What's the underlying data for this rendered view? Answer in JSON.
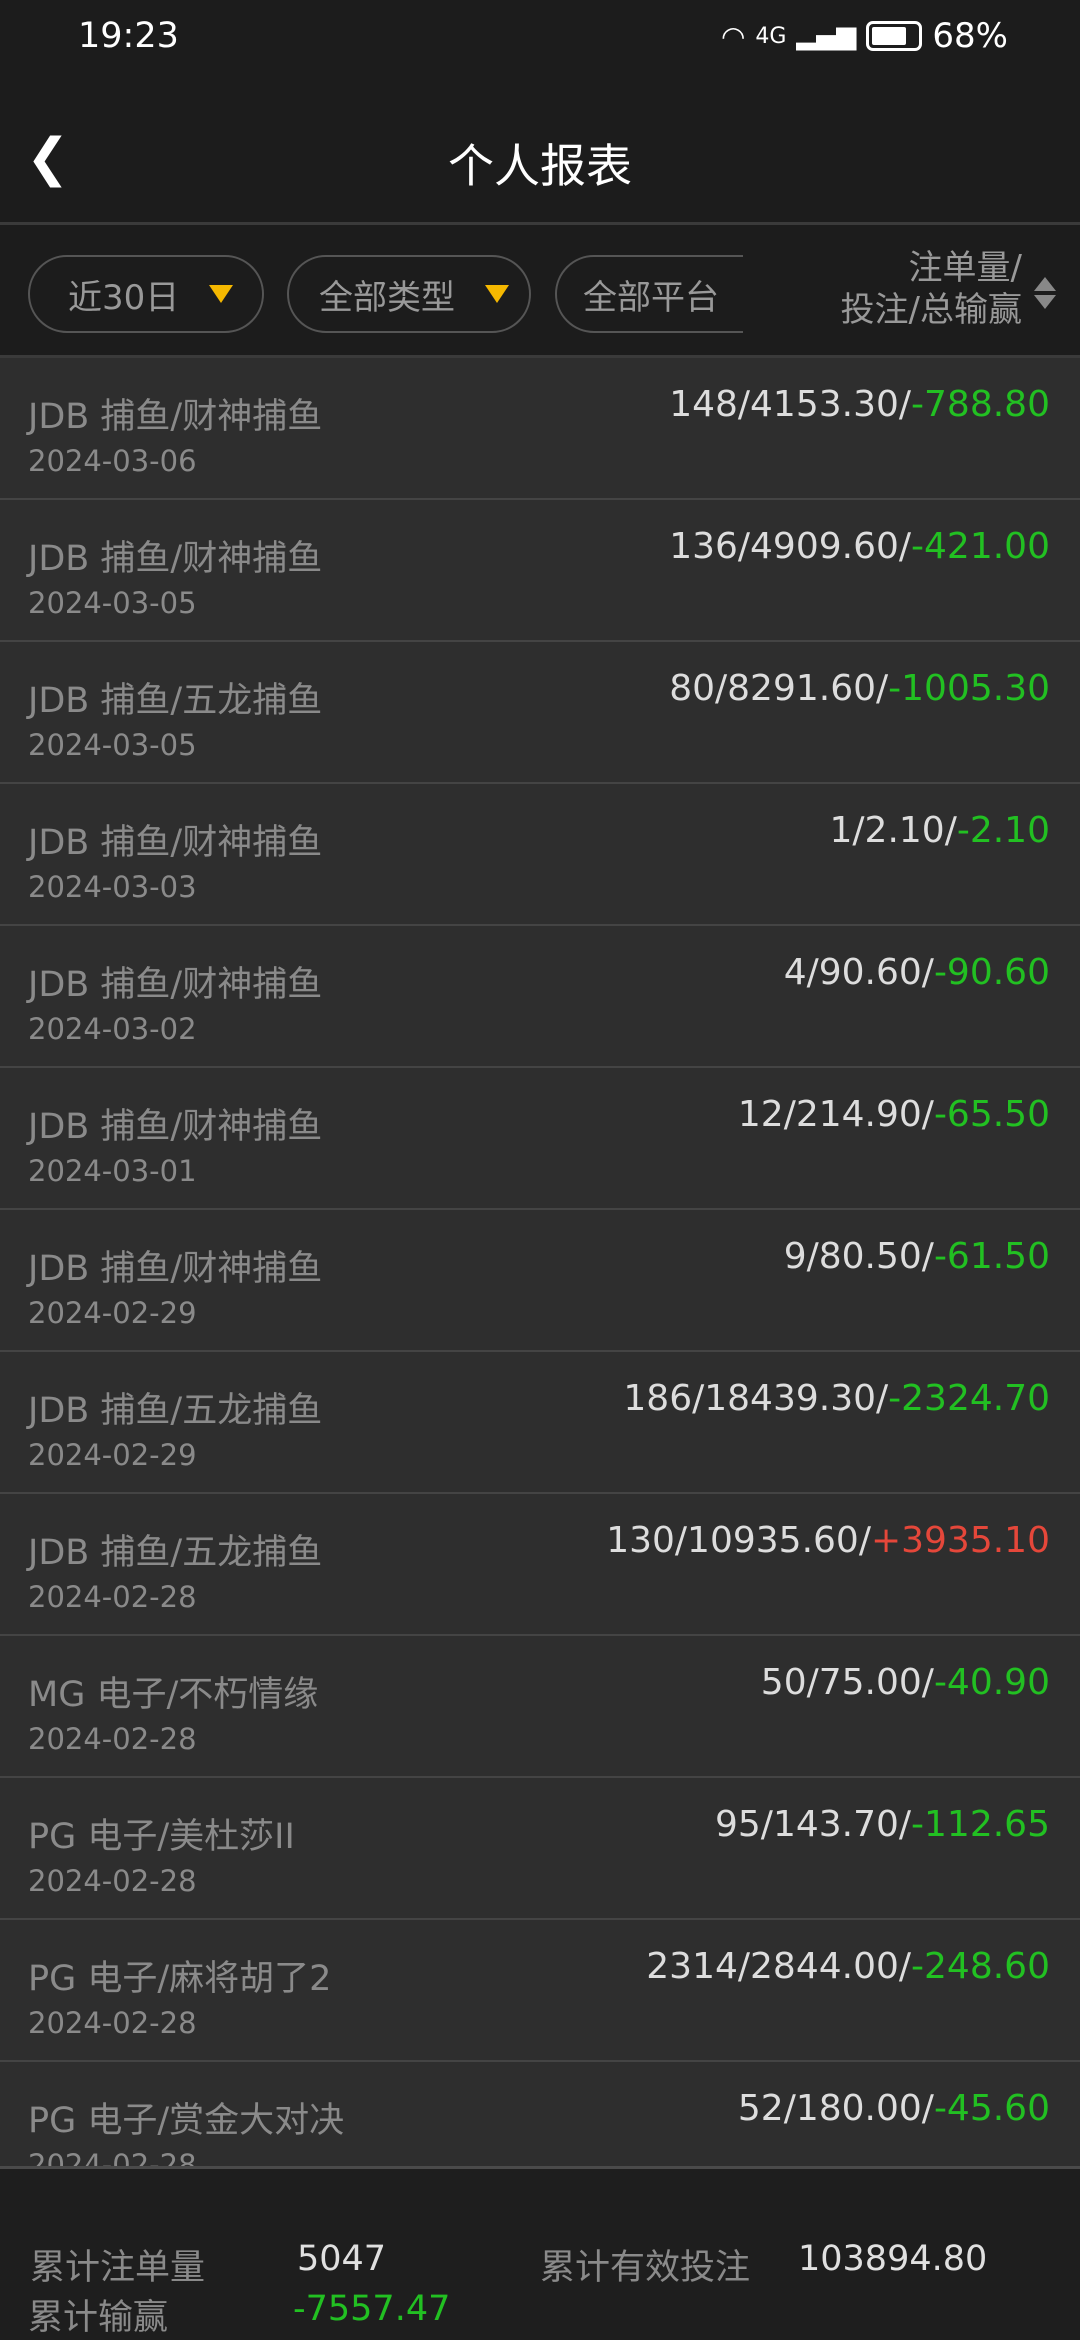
{
  "status": {
    "time": "19:23",
    "network": "4G",
    "battery_percent": "68%",
    "battery_level": 0.68
  },
  "header": {
    "back_icon": "chevron-left",
    "title": "个人报表"
  },
  "filters": {
    "period": "近30日",
    "type": "全部类型",
    "platform": "全部平台",
    "column_header_line1": "注单量/",
    "column_header_line2": "投注/总输赢",
    "accent": "#f5b800"
  },
  "rows": [
    {
      "title": "JDB  捕鱼/财神捕鱼",
      "date": "2024-03-06",
      "count_bet": "148/4153.30/",
      "result": "-788.80"
    },
    {
      "title": "JDB  捕鱼/财神捕鱼",
      "date": "2024-03-05",
      "count_bet": "136/4909.60/",
      "result": "-421.00"
    },
    {
      "title": "JDB  捕鱼/五龙捕鱼",
      "date": "2024-03-05",
      "count_bet": "80/8291.60/",
      "result": "-1005.30"
    },
    {
      "title": "JDB  捕鱼/财神捕鱼",
      "date": "2024-03-03",
      "count_bet": "1/2.10/",
      "result": "-2.10"
    },
    {
      "title": "JDB  捕鱼/财神捕鱼",
      "date": "2024-03-02",
      "count_bet": "4/90.60/",
      "result": "-90.60"
    },
    {
      "title": "JDB  捕鱼/财神捕鱼",
      "date": "2024-03-01",
      "count_bet": "12/214.90/",
      "result": "-65.50"
    },
    {
      "title": "JDB  捕鱼/财神捕鱼",
      "date": "2024-02-29",
      "count_bet": "9/80.50/",
      "result": "-61.50"
    },
    {
      "title": "JDB  捕鱼/五龙捕鱼",
      "date": "2024-02-29",
      "count_bet": "186/18439.30/",
      "result": "-2324.70"
    },
    {
      "title": "JDB  捕鱼/五龙捕鱼",
      "date": "2024-02-28",
      "count_bet": "130/10935.60/",
      "result": "+3935.10"
    },
    {
      "title": "MG  电子/不朽情缘",
      "date": "2024-02-28",
      "count_bet": "50/75.00/",
      "result": "-40.90"
    },
    {
      "title": "PG  电子/美杜莎II",
      "date": "2024-02-28",
      "count_bet": "95/143.70/",
      "result": "-112.65"
    },
    {
      "title": "PG  电子/麻将胡了2",
      "date": "2024-02-28",
      "count_bet": "2314/2844.00/",
      "result": "-248.60"
    },
    {
      "title": "PG  电子/赏金大对决",
      "date": "2024-02-28",
      "count_bet": "52/180.00/",
      "result": "-45.60"
    }
  ],
  "footer": {
    "total_count_label": "累计注单量",
    "total_count": "5047",
    "total_bet_label": "累计有效投注",
    "total_bet": "103894.80",
    "total_result_label": "累计输赢",
    "total_result": "-7557.47"
  },
  "colors": {
    "loss": "#22c022",
    "win": "#e5473a"
  }
}
